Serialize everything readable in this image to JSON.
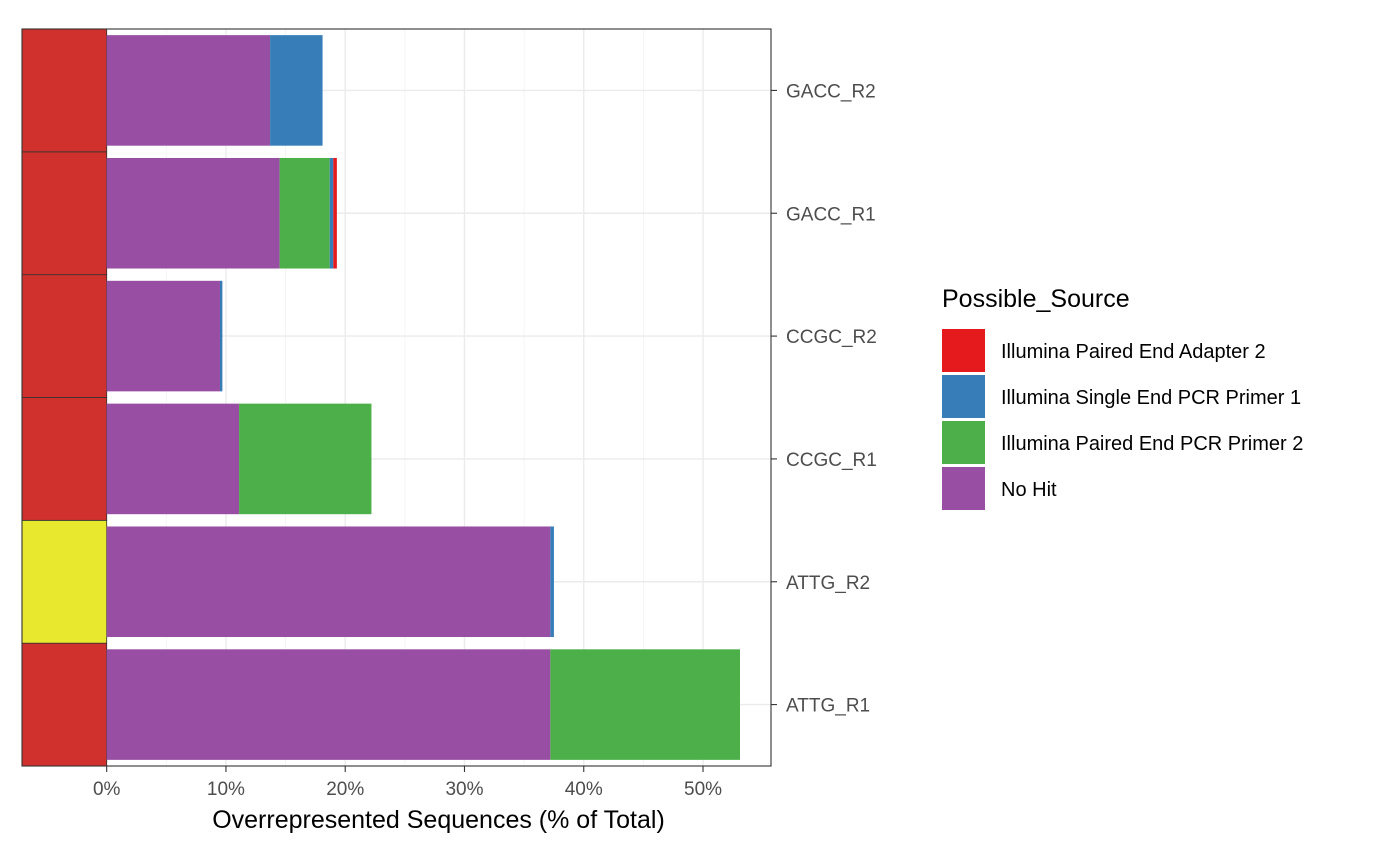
{
  "chart_data": {
    "type": "bar",
    "orientation": "horizontal",
    "stacked": true,
    "categories": [
      "ATTG_R1",
      "ATTG_R2",
      "CCGC_R1",
      "CCGC_R2",
      "GACC_R1",
      "GACC_R2"
    ],
    "series": [
      {
        "name": "No Hit",
        "color": "#984EA3",
        "values": [
          37.2,
          37.2,
          11.1,
          9.5,
          14.5,
          13.7
        ]
      },
      {
        "name": "Illumina Paired End PCR Primer 2",
        "color": "#4DAF4A",
        "values": [
          15.9,
          0.0,
          11.1,
          0.0,
          4.2,
          0.0
        ]
      },
      {
        "name": "Illumina Single End PCR Primer 1",
        "color": "#377EB8",
        "values": [
          0.0,
          0.3,
          0.0,
          0.2,
          0.3,
          4.4
        ]
      },
      {
        "name": "Illumina Paired End Adapter 2",
        "color": "#E41A1C",
        "values": [
          0.0,
          0.0,
          0.0,
          0.0,
          0.3,
          0.0
        ]
      }
    ],
    "status_strip": {
      "colors": [
        "#D0312D",
        "#E8E82E",
        "#D0312D",
        "#D0312D",
        "#D0312D",
        "#D0312D"
      ]
    },
    "xlabel": "Overrepresented Sequences (% of Total)",
    "x_ticks": [
      0,
      10,
      20,
      30,
      40,
      50
    ],
    "x_tick_labels": [
      "0%",
      "10%",
      "20%",
      "30%",
      "40%",
      "50%"
    ],
    "xlim": [
      -7.1,
      55.7
    ],
    "grid": true,
    "legend": {
      "title": "Possible_Source",
      "position": "right",
      "entries": [
        {
          "label": "Illumina Paired End Adapter 2",
          "color": "#E41A1C"
        },
        {
          "label": "Illumina Single End PCR Primer 1",
          "color": "#377EB8"
        },
        {
          "label": "Illumina Paired End PCR Primer 2",
          "color": "#4DAF4A"
        },
        {
          "label": "No Hit",
          "color": "#984EA3"
        }
      ]
    }
  }
}
